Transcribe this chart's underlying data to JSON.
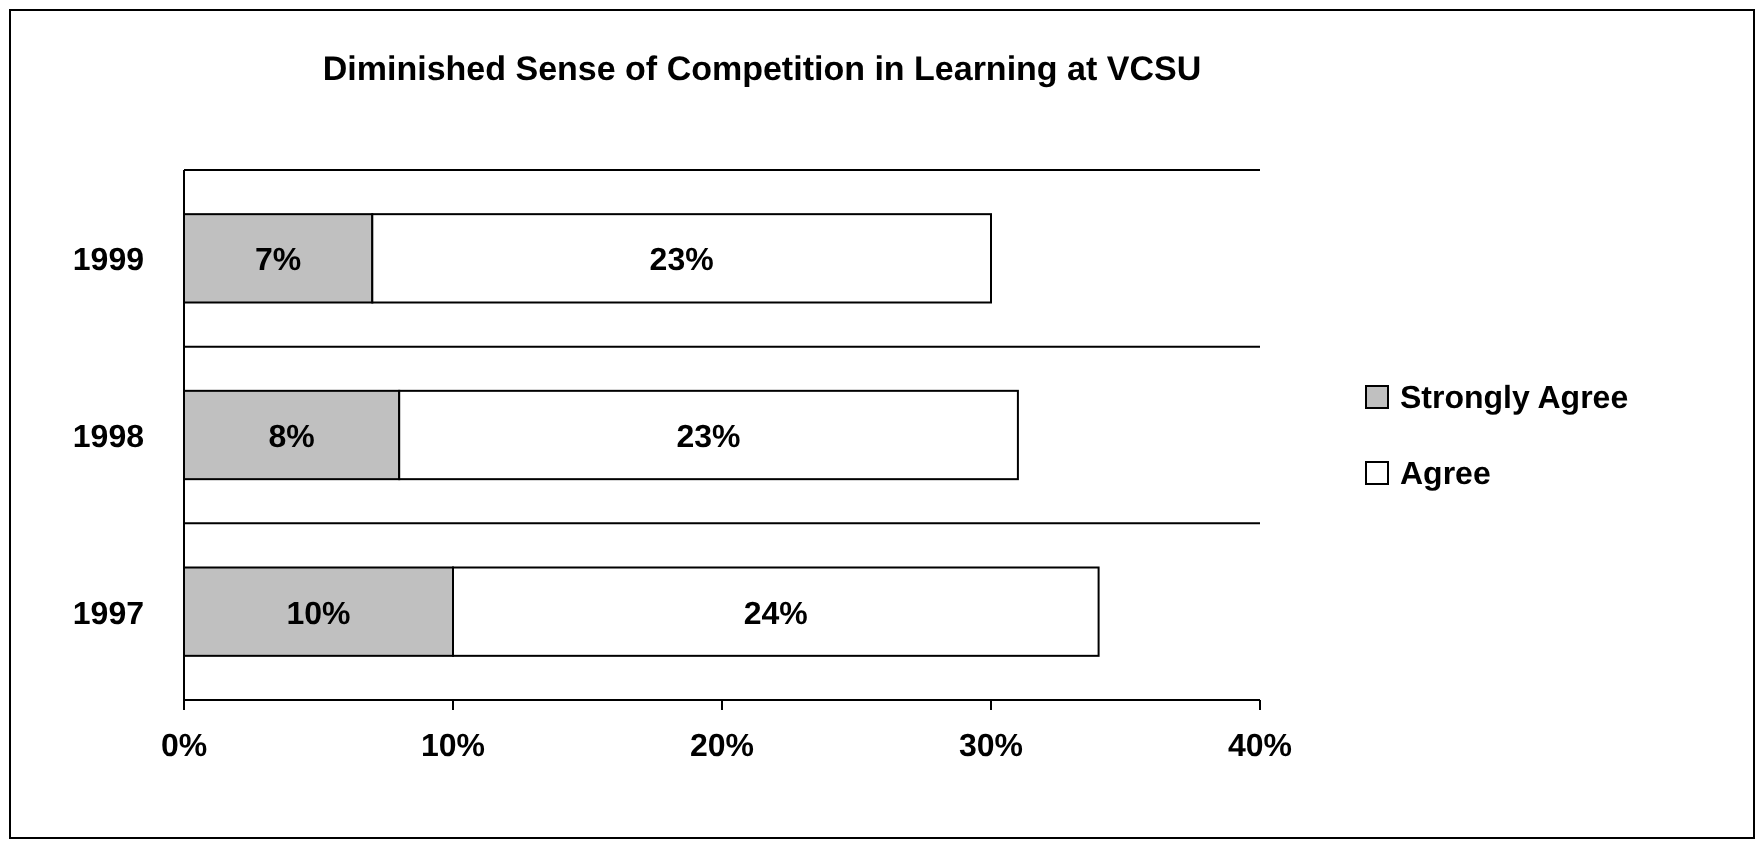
{
  "chart_data": {
    "type": "bar",
    "orientation": "horizontal",
    "stacked": true,
    "title": "Diminished Sense of Competition in Learning at VCSU",
    "categories": [
      "1999",
      "1998",
      "1997"
    ],
    "series": [
      {
        "name": "Strongly Agree",
        "color": "#c0c0c0",
        "values": [
          7,
          8,
          10
        ]
      },
      {
        "name": "Agree",
        "color": "#ffffff",
        "values": [
          23,
          23,
          24
        ]
      }
    ],
    "xlim": [
      0,
      40
    ],
    "xticks": [
      {
        "value": 0,
        "label": "0%"
      },
      {
        "value": 10,
        "label": "10%"
      },
      {
        "value": 20,
        "label": "20%"
      },
      {
        "value": 30,
        "label": "30%"
      },
      {
        "value": 40,
        "label": "40%"
      }
    ],
    "value_labels": [
      [
        "7%",
        "8%",
        "10%"
      ],
      [
        "23%",
        "23%",
        "24%"
      ]
    ],
    "grid": "y",
    "legend": "right"
  }
}
